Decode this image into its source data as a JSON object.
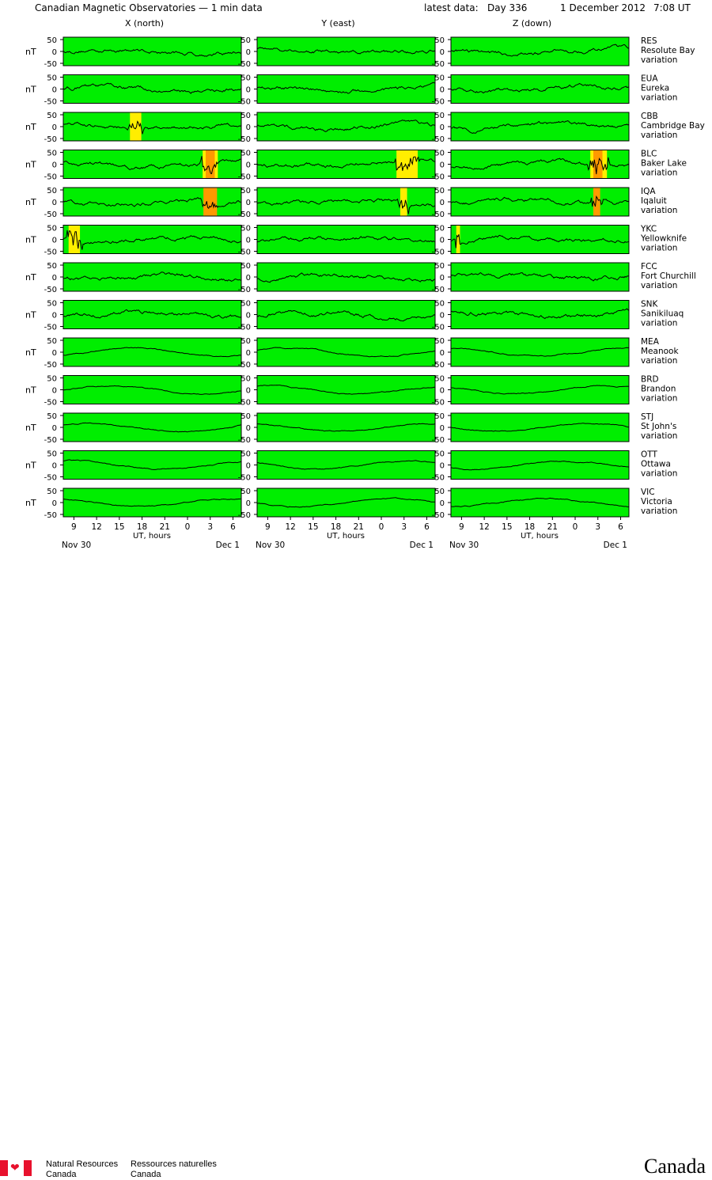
{
  "header": {
    "title": "Canadian Magnetic Observatories — 1 min data",
    "latest_label": "latest data:",
    "latest_day": "Day 336",
    "latest_date": "1 December 2012",
    "latest_time": "7:08 UT"
  },
  "chart_data": {
    "type": "line",
    "columns": [
      "X (north)",
      "Y (east)",
      "Z (down)"
    ],
    "ylabel": "nT",
    "yticks": [
      50,
      0,
      -50
    ],
    "x_ticks": [
      "9",
      "12",
      "15",
      "18",
      "21",
      "0",
      "3",
      "6"
    ],
    "xlabel": "UT, hours",
    "start_date": "Nov 30",
    "end_date": "Dec  1",
    "colors": {
      "quiet": "#00ee00",
      "active": "#ffee00",
      "storm": "#ff9900",
      "trace": "#000000"
    },
    "stations": [
      {
        "code": "RES",
        "name": "Resolute Bay",
        "note": "variation",
        "activity": [
          [],
          [],
          []
        ]
      },
      {
        "code": "EUA",
        "name": "Eureka",
        "note": "variation",
        "activity": [
          [],
          [],
          []
        ]
      },
      {
        "code": "CBB",
        "name": "Cambridge Bay",
        "note": "variation",
        "activity": [
          [
            {
              "from": 16.4,
              "to": 17.9,
              "level": "active"
            }
          ],
          [],
          []
        ]
      },
      {
        "code": "BLC",
        "name": "Baker Lake",
        "note": "variation",
        "activity": [
          [
            {
              "from": 26.0,
              "to": 28.0,
              "level": "active"
            },
            {
              "from": 26.4,
              "to": 27.6,
              "level": "storm"
            }
          ],
          [
            {
              "from": 26.0,
              "to": 28.8,
              "level": "active"
            }
          ],
          [
            {
              "from": 26.0,
              "to": 28.2,
              "level": "active"
            },
            {
              "from": 26.4,
              "to": 27.6,
              "level": "storm"
            }
          ]
        ]
      },
      {
        "code": "IQA",
        "name": "Iqaluit",
        "note": "variation",
        "activity": [
          [
            {
              "from": 26.1,
              "to": 27.9,
              "level": "storm"
            }
          ],
          [
            {
              "from": 26.5,
              "to": 27.4,
              "level": "active"
            }
          ],
          [
            {
              "from": 26.4,
              "to": 27.3,
              "level": "storm"
            }
          ]
        ]
      },
      {
        "code": "YKC",
        "name": "Yellowknife",
        "note": "variation",
        "activity": [
          [
            {
              "from": 8.3,
              "to": 9.8,
              "level": "active"
            }
          ],
          [],
          [
            {
              "from": 8.3,
              "to": 8.8,
              "level": "active"
            }
          ]
        ]
      },
      {
        "code": "FCC",
        "name": "Fort Churchill",
        "note": "variation",
        "activity": [
          [],
          [],
          []
        ]
      },
      {
        "code": "SNK",
        "name": "Sanikiluaq",
        "note": "variation",
        "activity": [
          [],
          [],
          []
        ]
      },
      {
        "code": "MEA",
        "name": "Meanook",
        "note": "variation",
        "activity": [
          [],
          [],
          []
        ]
      },
      {
        "code": "BRD",
        "name": "Brandon",
        "note": "variation",
        "activity": [
          [],
          [],
          []
        ]
      },
      {
        "code": "STJ",
        "name": "St John's",
        "note": "variation",
        "activity": [
          [],
          [],
          []
        ]
      },
      {
        "code": "OTT",
        "name": "Ottawa",
        "note": "variation",
        "activity": [
          [],
          [],
          []
        ]
      },
      {
        "code": "VIC",
        "name": "Victoria",
        "note": "variation",
        "activity": [
          [],
          [],
          []
        ]
      }
    ]
  },
  "footer": {
    "nrcan_en_1": "Natural Resources",
    "nrcan_en_2": "Canada",
    "nrcan_fr_1": "Ressources naturelles",
    "nrcan_fr_2": "Canada",
    "wordmark": "Canada",
    "flag_leaf": "❤"
  }
}
